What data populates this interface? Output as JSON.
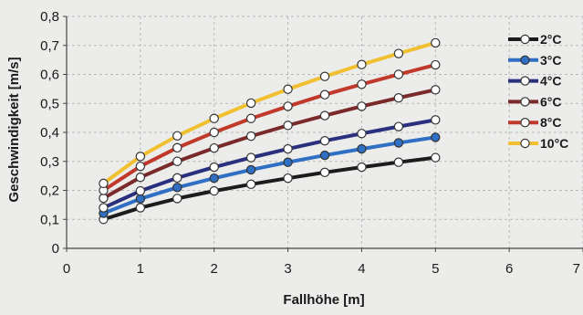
{
  "chart_data": {
    "type": "line",
    "title": "",
    "xlabel": "Fallhöhe [m]",
    "ylabel": "Geschwindigkeit [m/s]",
    "xlim": [
      0,
      7
    ],
    "ylim": [
      0,
      0.8
    ],
    "x_ticks": [
      "0",
      "1",
      "2",
      "3",
      "4",
      "5",
      "6",
      "7"
    ],
    "y_ticks": [
      "0",
      "0,1",
      "0,2",
      "0,3",
      "0,4",
      "0,5",
      "0,6",
      "0,7",
      "0,8"
    ],
    "grid": true,
    "legend_position": "right",
    "x": [
      0.5,
      1.0,
      1.5,
      2.0,
      2.5,
      3.0,
      3.5,
      4.0,
      4.5,
      5.0
    ],
    "series": [
      {
        "name": "2°C",
        "color": "#1c1c1c",
        "marker_fill": "#ffffff",
        "values": [
          0.1,
          0.14,
          0.172,
          0.198,
          0.221,
          0.242,
          0.262,
          0.28,
          0.297,
          0.313
        ]
      },
      {
        "name": "3°C",
        "color": "#2f6fc4",
        "marker_fill": "#2f6fc4",
        "values": [
          0.121,
          0.171,
          0.21,
          0.242,
          0.271,
          0.297,
          0.321,
          0.343,
          0.364,
          0.383
        ]
      },
      {
        "name": "4°C",
        "color": "#2a2f7e",
        "marker_fill": "#ffffff",
        "values": [
          0.14,
          0.198,
          0.243,
          0.28,
          0.313,
          0.343,
          0.371,
          0.396,
          0.42,
          0.443
        ]
      },
      {
        "name": "6°C",
        "color": "#7a2a2a",
        "marker_fill": "#ffffff",
        "values": [
          0.173,
          0.245,
          0.3,
          0.346,
          0.387,
          0.424,
          0.458,
          0.49,
          0.519,
          0.547
        ]
      },
      {
        "name": "8°C",
        "color": "#c0392b",
        "marker_fill": "#ffffff",
        "values": [
          0.2,
          0.283,
          0.347,
          0.4,
          0.448,
          0.49,
          0.53,
          0.566,
          0.6,
          0.633
        ]
      },
      {
        "name": "10°C",
        "color": "#f0c030",
        "marker_fill": "#ffffff",
        "values": [
          0.224,
          0.317,
          0.388,
          0.448,
          0.501,
          0.549,
          0.593,
          0.634,
          0.672,
          0.709
        ]
      }
    ]
  }
}
